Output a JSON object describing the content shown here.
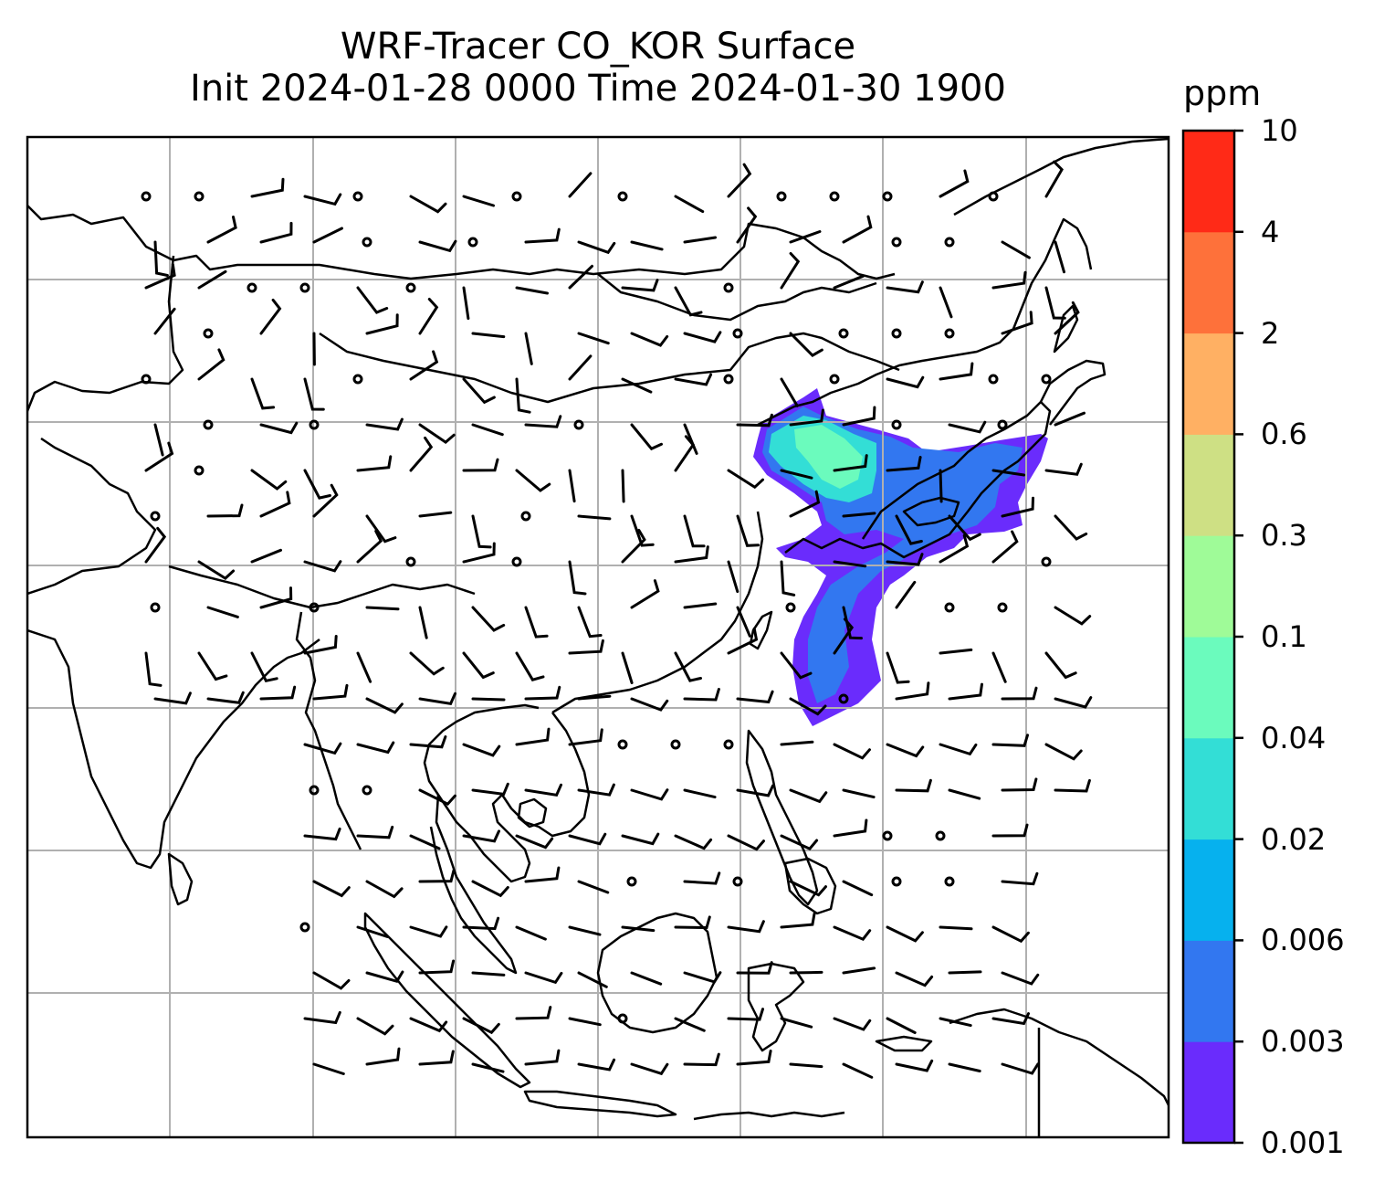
{
  "title": {
    "line1": "WRF-Tracer CO_KOR Surface",
    "line2": "Init 2024-01-28 0000 Time 2024-01-30 1900"
  },
  "colorbar": {
    "unit": "ppm",
    "ticks": [
      "0.001",
      "0.003",
      "0.006",
      "0.02",
      "0.04",
      "0.1",
      "0.3",
      "0.6",
      "2",
      "4",
      "10"
    ],
    "colors": [
      "#6a2cfc",
      "#3277f0",
      "#06b1ee",
      "#33ded6",
      "#6bfbbd",
      "#9ffb98",
      "#cee084",
      "#ffb063",
      "#fe713a",
      "#ff2a17"
    ]
  },
  "map": {
    "plume_colors": [
      "#6a2cfc",
      "#3277f0",
      "#33ded6",
      "#6bfbbd"
    ],
    "gridlines": true
  }
}
